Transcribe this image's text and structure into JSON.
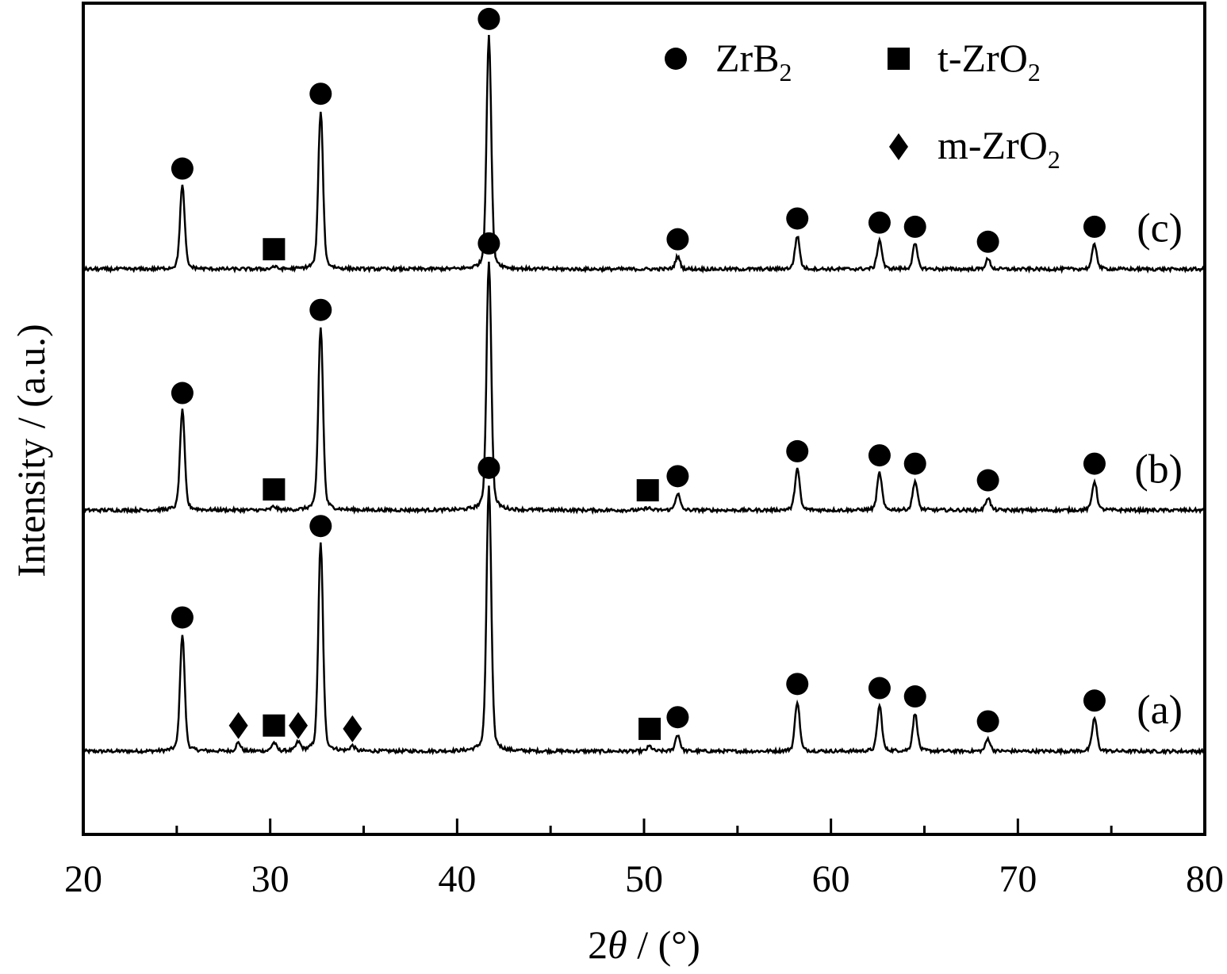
{
  "chart_data": {
    "type": "line",
    "title": "",
    "xlabel_prefix": "2",
    "xlabel_symbol": "θ",
    "xlabel_suffix": " / (°)",
    "ylabel": "Intensity / (a.u.)",
    "xlim": [
      20,
      80
    ],
    "ylim": [
      0,
      1
    ],
    "xticks": [
      20,
      30,
      40,
      50,
      60,
      70,
      80
    ],
    "xticks_minor": [
      25,
      35,
      45,
      55,
      65,
      75
    ],
    "yticks_visible": false,
    "grid": false,
    "legend_position": "top-right",
    "legend": [
      {
        "marker": "circle",
        "text": "ZrB",
        "sub": "2"
      },
      {
        "marker": "square",
        "text": "t-ZrO",
        "sub": "2"
      },
      {
        "marker": "diamond",
        "text": "m-ZrO",
        "sub": "2"
      }
    ],
    "series": [
      {
        "name": "(a)",
        "baseline": 0.1,
        "peaks": [
          {
            "x": 25.3,
            "height": 0.14,
            "phase": "ZrB2"
          },
          {
            "x": 28.3,
            "height": 0.01,
            "phase": "m-ZrO2"
          },
          {
            "x": 30.2,
            "height": 0.01,
            "phase": "t-ZrO2"
          },
          {
            "x": 31.5,
            "height": 0.01,
            "phase": "m-ZrO2"
          },
          {
            "x": 32.7,
            "height": 0.25,
            "phase": "ZrB2"
          },
          {
            "x": 34.4,
            "height": 0.006,
            "phase": "m-ZrO2"
          },
          {
            "x": 41.7,
            "height": 0.32,
            "phase": "ZrB2"
          },
          {
            "x": 50.3,
            "height": 0.006,
            "phase": "t-ZrO2"
          },
          {
            "x": 51.8,
            "height": 0.02,
            "phase": "ZrB2"
          },
          {
            "x": 58.2,
            "height": 0.06,
            "phase": "ZrB2"
          },
          {
            "x": 62.6,
            "height": 0.055,
            "phase": "ZrB2"
          },
          {
            "x": 64.5,
            "height": 0.045,
            "phase": "ZrB2"
          },
          {
            "x": 68.4,
            "height": 0.015,
            "phase": "ZrB2"
          },
          {
            "x": 74.1,
            "height": 0.04,
            "phase": "ZrB2"
          }
        ]
      },
      {
        "name": "(b)",
        "baseline": 0.39,
        "peaks": [
          {
            "x": 25.3,
            "height": 0.12,
            "phase": "ZrB2"
          },
          {
            "x": 30.2,
            "height": 0.004,
            "phase": "t-ZrO2"
          },
          {
            "x": 32.7,
            "height": 0.22,
            "phase": "ZrB2"
          },
          {
            "x": 41.7,
            "height": 0.3,
            "phase": "ZrB2"
          },
          {
            "x": 50.2,
            "height": 0.003,
            "phase": "t-ZrO2"
          },
          {
            "x": 51.8,
            "height": 0.02,
            "phase": "ZrB2"
          },
          {
            "x": 58.2,
            "height": 0.05,
            "phase": "ZrB2"
          },
          {
            "x": 62.6,
            "height": 0.045,
            "phase": "ZrB2"
          },
          {
            "x": 64.5,
            "height": 0.035,
            "phase": "ZrB2"
          },
          {
            "x": 68.4,
            "height": 0.015,
            "phase": "ZrB2"
          },
          {
            "x": 74.1,
            "height": 0.035,
            "phase": "ZrB2"
          }
        ]
      },
      {
        "name": "(c)",
        "baseline": 0.68,
        "peaks": [
          {
            "x": 25.3,
            "height": 0.1,
            "phase": "ZrB2"
          },
          {
            "x": 30.2,
            "height": 0.003,
            "phase": "t-ZrO2"
          },
          {
            "x": 32.7,
            "height": 0.19,
            "phase": "ZrB2"
          },
          {
            "x": 41.7,
            "height": 0.28,
            "phase": "ZrB2"
          },
          {
            "x": 51.8,
            "height": 0.015,
            "phase": "ZrB2"
          },
          {
            "x": 58.2,
            "height": 0.04,
            "phase": "ZrB2"
          },
          {
            "x": 62.6,
            "height": 0.035,
            "phase": "ZrB2"
          },
          {
            "x": 64.5,
            "height": 0.03,
            "phase": "ZrB2"
          },
          {
            "x": 68.4,
            "height": 0.012,
            "phase": "ZrB2"
          },
          {
            "x": 74.1,
            "height": 0.03,
            "phase": "ZrB2"
          }
        ]
      }
    ]
  }
}
